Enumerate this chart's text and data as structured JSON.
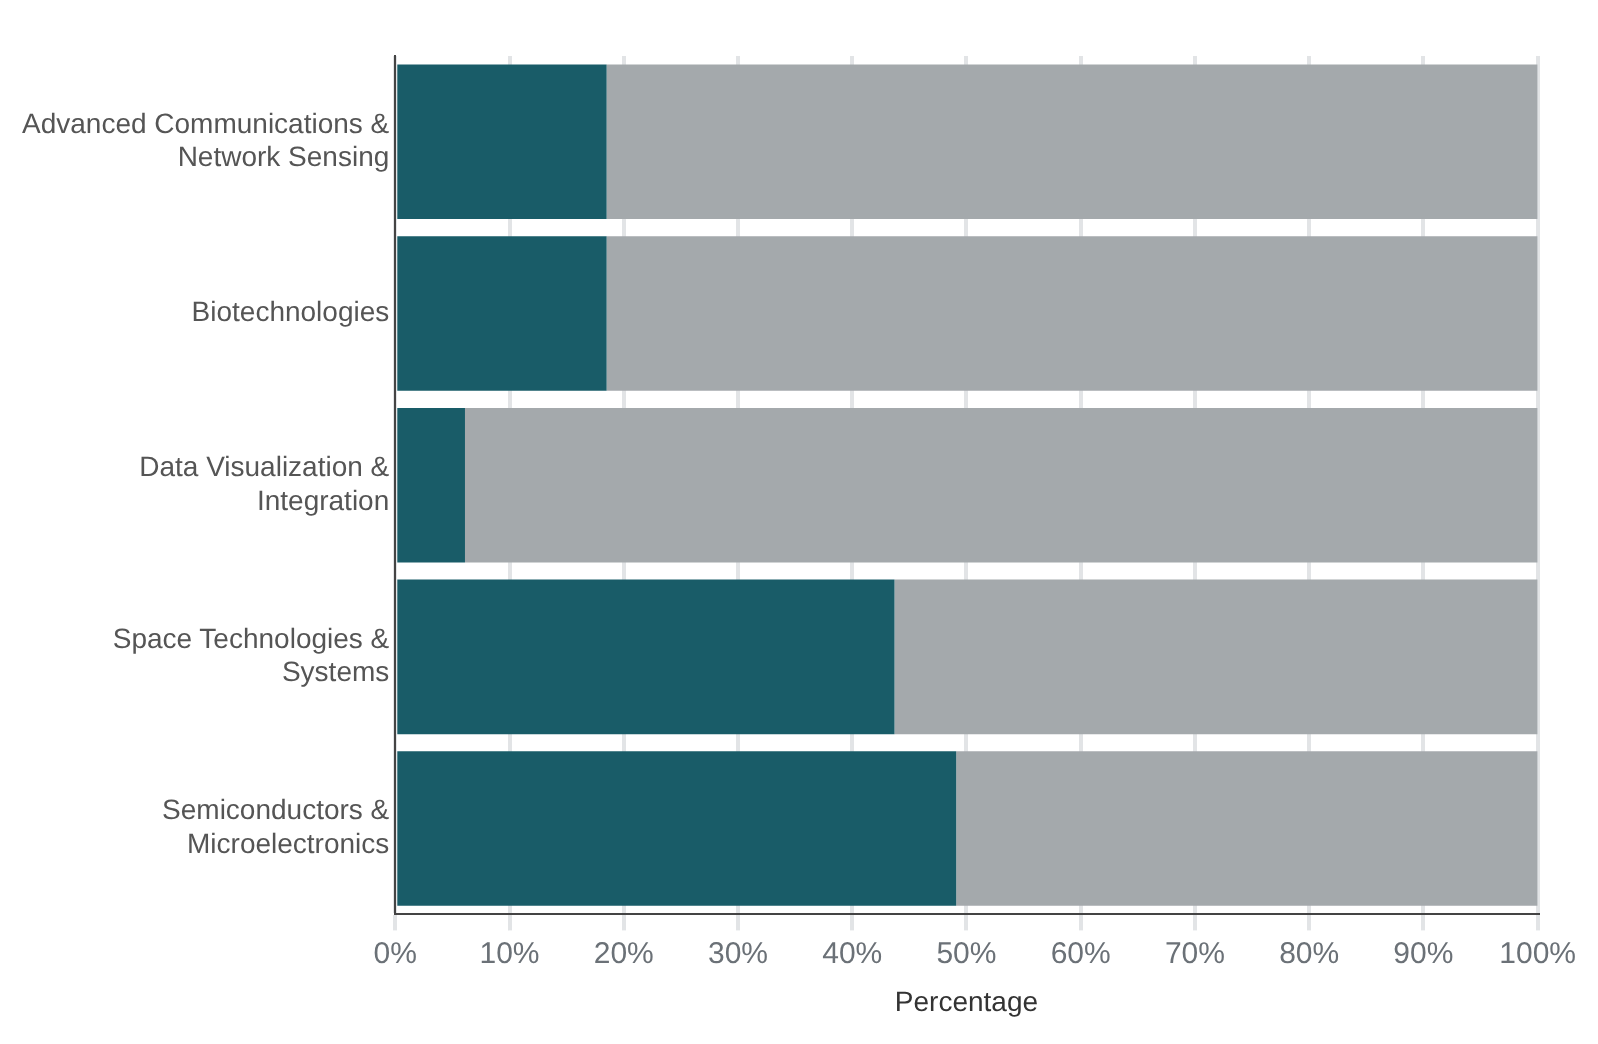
{
  "chart_data": {
    "type": "bar",
    "orientation": "horizontal",
    "stacked": true,
    "xlabel": "Percentage",
    "categories": [
      "Advanced Communications & Network Sensing",
      "Biotechnologies",
      "Data Visualization & Integration",
      "Space Technologies & Systems",
      "Semiconductors & Microelectronics"
    ],
    "series": [
      {
        "color": "#195c68",
        "values": [
          18.5,
          18.5,
          6.1,
          43.7,
          49.1
        ]
      },
      {
        "color": "#a4a9ac",
        "values": [
          81.5,
          81.5,
          93.9,
          56.3,
          50.9
        ]
      }
    ],
    "xlim": [
      0,
      100
    ],
    "xticks": [
      {
        "value": 0,
        "label": "0%"
      },
      {
        "value": 10,
        "label": "10%"
      },
      {
        "value": 20,
        "label": "20%"
      },
      {
        "value": 30,
        "label": "30%"
      },
      {
        "value": 40,
        "label": "40%"
      },
      {
        "value": 50,
        "label": "50%"
      },
      {
        "value": 60,
        "label": "60%"
      },
      {
        "value": 70,
        "label": "70%"
      },
      {
        "value": 80,
        "label": "80%"
      },
      {
        "value": 90,
        "label": "90%"
      },
      {
        "value": 100,
        "label": "100%"
      }
    ],
    "grid": "x",
    "legend": false
  }
}
